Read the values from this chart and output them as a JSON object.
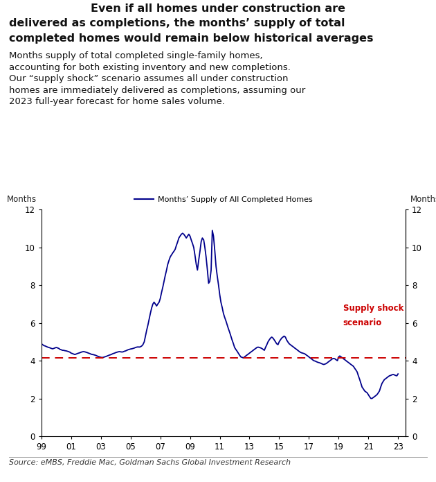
{
  "title_line1": "Even if all homes under construction are",
  "title_line2": "delivered as completions, the months’ supply of total",
  "title_line3": "completed homes would remain below historical averages",
  "subtitle": "Months supply of total completed single-family homes,\naccounting for both existing inventory and new completions.\nOur “supply shock” scenario assumes all under construction\nhomes are immediately delivered as completions, assuming our\n2023 full-year forecast for home sales volume.",
  "ylabel_left": "Months",
  "ylabel_right": "Months",
  "legend_label": "Months’ Supply of All Completed Homes",
  "dashed_label_line1": "Supply shock",
  "dashed_label_line2": "scenario",
  "dashed_value": 4.15,
  "source": "Source: eMBS, Freddie Mac, Goldman Sachs Global Investment Research",
  "line_color": "#00008B",
  "dashed_color": "#CC0000",
  "ylim": [
    0,
    12
  ],
  "yticks": [
    0,
    2,
    4,
    6,
    8,
    10,
    12
  ],
  "xtick_labels": [
    "99",
    "01",
    "03",
    "05",
    "07",
    "09",
    "11",
    "13",
    "15",
    "17",
    "19",
    "21",
    "23"
  ],
  "background_color": "#FFFFFF",
  "data": [
    [
      1999.0,
      4.9
    ],
    [
      1999.08,
      4.85
    ],
    [
      1999.17,
      4.8
    ],
    [
      1999.25,
      4.78
    ],
    [
      1999.33,
      4.75
    ],
    [
      1999.42,
      4.72
    ],
    [
      1999.5,
      4.7
    ],
    [
      1999.58,
      4.68
    ],
    [
      1999.67,
      4.65
    ],
    [
      1999.75,
      4.63
    ],
    [
      1999.83,
      4.65
    ],
    [
      1999.92,
      4.68
    ],
    [
      2000.0,
      4.7
    ],
    [
      2000.08,
      4.68
    ],
    [
      2000.17,
      4.65
    ],
    [
      2000.25,
      4.6
    ],
    [
      2000.33,
      4.58
    ],
    [
      2000.42,
      4.55
    ],
    [
      2000.5,
      4.55
    ],
    [
      2000.58,
      4.53
    ],
    [
      2000.67,
      4.52
    ],
    [
      2000.75,
      4.5
    ],
    [
      2000.83,
      4.48
    ],
    [
      2000.92,
      4.45
    ],
    [
      2001.0,
      4.4
    ],
    [
      2001.08,
      4.38
    ],
    [
      2001.17,
      4.35
    ],
    [
      2001.25,
      4.33
    ],
    [
      2001.33,
      4.35
    ],
    [
      2001.42,
      4.38
    ],
    [
      2001.5,
      4.4
    ],
    [
      2001.58,
      4.42
    ],
    [
      2001.67,
      4.45
    ],
    [
      2001.75,
      4.47
    ],
    [
      2001.83,
      4.48
    ],
    [
      2001.92,
      4.47
    ],
    [
      2002.0,
      4.45
    ],
    [
      2002.08,
      4.43
    ],
    [
      2002.17,
      4.4
    ],
    [
      2002.25,
      4.38
    ],
    [
      2002.33,
      4.35
    ],
    [
      2002.42,
      4.33
    ],
    [
      2002.5,
      4.32
    ],
    [
      2002.58,
      4.3
    ],
    [
      2002.67,
      4.28
    ],
    [
      2002.75,
      4.25
    ],
    [
      2002.83,
      4.22
    ],
    [
      2002.92,
      4.2
    ],
    [
      2003.0,
      4.18
    ],
    [
      2003.08,
      4.17
    ],
    [
      2003.17,
      4.18
    ],
    [
      2003.25,
      4.2
    ],
    [
      2003.33,
      4.22
    ],
    [
      2003.42,
      4.25
    ],
    [
      2003.5,
      4.28
    ],
    [
      2003.58,
      4.3
    ],
    [
      2003.67,
      4.32
    ],
    [
      2003.75,
      4.35
    ],
    [
      2003.83,
      4.38
    ],
    [
      2003.92,
      4.4
    ],
    [
      2004.0,
      4.43
    ],
    [
      2004.08,
      4.45
    ],
    [
      2004.17,
      4.47
    ],
    [
      2004.25,
      4.48
    ],
    [
      2004.33,
      4.47
    ],
    [
      2004.42,
      4.46
    ],
    [
      2004.5,
      4.47
    ],
    [
      2004.58,
      4.5
    ],
    [
      2004.67,
      4.52
    ],
    [
      2004.75,
      4.55
    ],
    [
      2004.83,
      4.58
    ],
    [
      2004.92,
      4.6
    ],
    [
      2005.0,
      4.62
    ],
    [
      2005.08,
      4.63
    ],
    [
      2005.17,
      4.65
    ],
    [
      2005.25,
      4.67
    ],
    [
      2005.33,
      4.7
    ],
    [
      2005.42,
      4.72
    ],
    [
      2005.5,
      4.73
    ],
    [
      2005.58,
      4.72
    ],
    [
      2005.67,
      4.74
    ],
    [
      2005.75,
      4.78
    ],
    [
      2005.83,
      4.85
    ],
    [
      2005.92,
      5.0
    ],
    [
      2006.0,
      5.3
    ],
    [
      2006.08,
      5.6
    ],
    [
      2006.17,
      5.9
    ],
    [
      2006.25,
      6.2
    ],
    [
      2006.33,
      6.5
    ],
    [
      2006.42,
      6.8
    ],
    [
      2006.5,
      7.0
    ],
    [
      2006.58,
      7.1
    ],
    [
      2006.67,
      7.0
    ],
    [
      2006.75,
      6.9
    ],
    [
      2006.83,
      7.0
    ],
    [
      2006.92,
      7.1
    ],
    [
      2007.0,
      7.3
    ],
    [
      2007.08,
      7.6
    ],
    [
      2007.17,
      7.9
    ],
    [
      2007.25,
      8.2
    ],
    [
      2007.33,
      8.5
    ],
    [
      2007.42,
      8.8
    ],
    [
      2007.5,
      9.1
    ],
    [
      2007.58,
      9.3
    ],
    [
      2007.67,
      9.5
    ],
    [
      2007.75,
      9.6
    ],
    [
      2007.83,
      9.7
    ],
    [
      2007.92,
      9.8
    ],
    [
      2008.0,
      9.9
    ],
    [
      2008.08,
      10.1
    ],
    [
      2008.17,
      10.3
    ],
    [
      2008.25,
      10.5
    ],
    [
      2008.33,
      10.6
    ],
    [
      2008.42,
      10.7
    ],
    [
      2008.5,
      10.75
    ],
    [
      2008.58,
      10.7
    ],
    [
      2008.67,
      10.6
    ],
    [
      2008.75,
      10.5
    ],
    [
      2008.83,
      10.6
    ],
    [
      2008.92,
      10.7
    ],
    [
      2009.0,
      10.6
    ],
    [
      2009.08,
      10.4
    ],
    [
      2009.17,
      10.2
    ],
    [
      2009.25,
      10.0
    ],
    [
      2009.33,
      9.6
    ],
    [
      2009.42,
      9.1
    ],
    [
      2009.5,
      8.8
    ],
    [
      2009.58,
      9.3
    ],
    [
      2009.67,
      9.8
    ],
    [
      2009.75,
      10.3
    ],
    [
      2009.83,
      10.5
    ],
    [
      2009.92,
      10.4
    ],
    [
      2010.0,
      10.0
    ],
    [
      2010.08,
      9.5
    ],
    [
      2010.17,
      8.8
    ],
    [
      2010.25,
      8.1
    ],
    [
      2010.33,
      8.2
    ],
    [
      2010.42,
      8.8
    ],
    [
      2010.5,
      10.9
    ],
    [
      2010.58,
      10.6
    ],
    [
      2010.67,
      9.8
    ],
    [
      2010.75,
      9.0
    ],
    [
      2010.83,
      8.5
    ],
    [
      2010.92,
      8.0
    ],
    [
      2011.0,
      7.5
    ],
    [
      2011.08,
      7.1
    ],
    [
      2011.17,
      6.8
    ],
    [
      2011.25,
      6.5
    ],
    [
      2011.33,
      6.3
    ],
    [
      2011.42,
      6.1
    ],
    [
      2011.5,
      5.9
    ],
    [
      2011.58,
      5.7
    ],
    [
      2011.67,
      5.5
    ],
    [
      2011.75,
      5.3
    ],
    [
      2011.83,
      5.1
    ],
    [
      2011.92,
      4.9
    ],
    [
      2012.0,
      4.7
    ],
    [
      2012.08,
      4.6
    ],
    [
      2012.17,
      4.5
    ],
    [
      2012.25,
      4.4
    ],
    [
      2012.33,
      4.3
    ],
    [
      2012.42,
      4.2
    ],
    [
      2012.5,
      4.18
    ],
    [
      2012.58,
      4.15
    ],
    [
      2012.67,
      4.2
    ],
    [
      2012.75,
      4.25
    ],
    [
      2012.83,
      4.3
    ],
    [
      2012.92,
      4.35
    ],
    [
      2013.0,
      4.4
    ],
    [
      2013.08,
      4.45
    ],
    [
      2013.17,
      4.5
    ],
    [
      2013.25,
      4.55
    ],
    [
      2013.33,
      4.6
    ],
    [
      2013.42,
      4.65
    ],
    [
      2013.5,
      4.7
    ],
    [
      2013.58,
      4.72
    ],
    [
      2013.67,
      4.7
    ],
    [
      2013.75,
      4.68
    ],
    [
      2013.83,
      4.65
    ],
    [
      2013.92,
      4.6
    ],
    [
      2014.0,
      4.55
    ],
    [
      2014.08,
      4.7
    ],
    [
      2014.17,
      4.85
    ],
    [
      2014.25,
      5.0
    ],
    [
      2014.33,
      5.1
    ],
    [
      2014.42,
      5.2
    ],
    [
      2014.5,
      5.25
    ],
    [
      2014.58,
      5.2
    ],
    [
      2014.67,
      5.1
    ],
    [
      2014.75,
      5.0
    ],
    [
      2014.83,
      4.9
    ],
    [
      2014.92,
      4.85
    ],
    [
      2015.0,
      5.0
    ],
    [
      2015.08,
      5.1
    ],
    [
      2015.17,
      5.2
    ],
    [
      2015.25,
      5.25
    ],
    [
      2015.33,
      5.3
    ],
    [
      2015.42,
      5.25
    ],
    [
      2015.5,
      5.1
    ],
    [
      2015.58,
      5.0
    ],
    [
      2015.67,
      4.9
    ],
    [
      2015.75,
      4.85
    ],
    [
      2015.83,
      4.8
    ],
    [
      2015.92,
      4.75
    ],
    [
      2016.0,
      4.7
    ],
    [
      2016.08,
      4.65
    ],
    [
      2016.17,
      4.6
    ],
    [
      2016.25,
      4.55
    ],
    [
      2016.33,
      4.5
    ],
    [
      2016.42,
      4.45
    ],
    [
      2016.5,
      4.42
    ],
    [
      2016.58,
      4.4
    ],
    [
      2016.67,
      4.38
    ],
    [
      2016.75,
      4.35
    ],
    [
      2016.83,
      4.3
    ],
    [
      2016.92,
      4.25
    ],
    [
      2017.0,
      4.2
    ],
    [
      2017.08,
      4.15
    ],
    [
      2017.17,
      4.1
    ],
    [
      2017.25,
      4.05
    ],
    [
      2017.33,
      4.0
    ],
    [
      2017.42,
      3.98
    ],
    [
      2017.5,
      3.95
    ],
    [
      2017.58,
      3.92
    ],
    [
      2017.67,
      3.9
    ],
    [
      2017.75,
      3.88
    ],
    [
      2017.83,
      3.85
    ],
    [
      2017.92,
      3.82
    ],
    [
      2018.0,
      3.8
    ],
    [
      2018.08,
      3.82
    ],
    [
      2018.17,
      3.85
    ],
    [
      2018.25,
      3.9
    ],
    [
      2018.33,
      3.95
    ],
    [
      2018.42,
      4.0
    ],
    [
      2018.5,
      4.05
    ],
    [
      2018.58,
      4.1
    ],
    [
      2018.67,
      4.12
    ],
    [
      2018.75,
      4.1
    ],
    [
      2018.83,
      4.05
    ],
    [
      2018.92,
      4.0
    ],
    [
      2019.0,
      4.2
    ],
    [
      2019.08,
      4.25
    ],
    [
      2019.17,
      4.2
    ],
    [
      2019.25,
      4.15
    ],
    [
      2019.33,
      4.1
    ],
    [
      2019.42,
      4.05
    ],
    [
      2019.5,
      4.0
    ],
    [
      2019.58,
      3.95
    ],
    [
      2019.67,
      3.9
    ],
    [
      2019.75,
      3.85
    ],
    [
      2019.83,
      3.8
    ],
    [
      2019.92,
      3.75
    ],
    [
      2020.0,
      3.7
    ],
    [
      2020.08,
      3.6
    ],
    [
      2020.17,
      3.5
    ],
    [
      2020.25,
      3.4
    ],
    [
      2020.33,
      3.2
    ],
    [
      2020.42,
      3.0
    ],
    [
      2020.5,
      2.8
    ],
    [
      2020.58,
      2.6
    ],
    [
      2020.67,
      2.5
    ],
    [
      2020.75,
      2.4
    ],
    [
      2020.83,
      2.35
    ],
    [
      2020.92,
      2.3
    ],
    [
      2021.0,
      2.2
    ],
    [
      2021.08,
      2.1
    ],
    [
      2021.17,
      2.0
    ],
    [
      2021.25,
      2.0
    ],
    [
      2021.33,
      2.05
    ],
    [
      2021.42,
      2.1
    ],
    [
      2021.5,
      2.15
    ],
    [
      2021.58,
      2.2
    ],
    [
      2021.67,
      2.3
    ],
    [
      2021.75,
      2.4
    ],
    [
      2021.83,
      2.6
    ],
    [
      2021.92,
      2.8
    ],
    [
      2022.0,
      2.9
    ],
    [
      2022.08,
      3.0
    ],
    [
      2022.17,
      3.05
    ],
    [
      2022.25,
      3.1
    ],
    [
      2022.33,
      3.15
    ],
    [
      2022.42,
      3.2
    ],
    [
      2022.5,
      3.22
    ],
    [
      2022.58,
      3.25
    ],
    [
      2022.67,
      3.27
    ],
    [
      2022.75,
      3.25
    ],
    [
      2022.83,
      3.22
    ],
    [
      2022.92,
      3.2
    ],
    [
      2023.0,
      3.3
    ]
  ]
}
